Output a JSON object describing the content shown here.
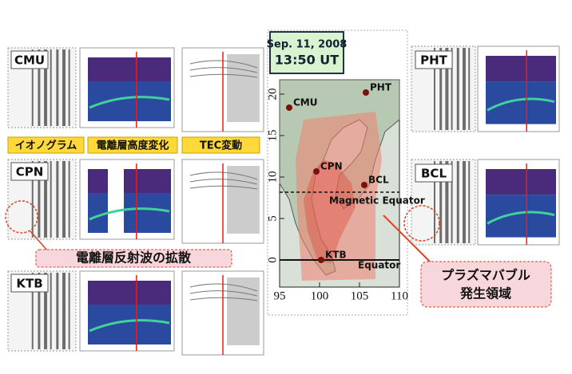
{
  "left_panels": {
    "stations": [
      "CMU",
      "CPN",
      "KTB"
    ],
    "column_labels": [
      "イオノグラム",
      "電離層高度変化",
      "TEC変動"
    ],
    "annotation": "電離層反射波の拡散"
  },
  "map": {
    "date": "Sep. 11, 2008",
    "time": "13:50 UT",
    "stations": [
      "PHT",
      "CMU",
      "CPN",
      "BCL",
      "KTB"
    ],
    "magnetic_equator": "Magnetic Equator",
    "equator": "Equator",
    "lat_ticks": [
      0,
      5,
      10,
      15,
      20
    ],
    "lon_ticks": [
      95,
      100,
      105,
      110
    ]
  },
  "right_panels": {
    "stations": [
      "PHT",
      "BCL"
    ]
  },
  "bubble_label": [
    "プラズマバブル",
    "発生領域"
  ]
}
